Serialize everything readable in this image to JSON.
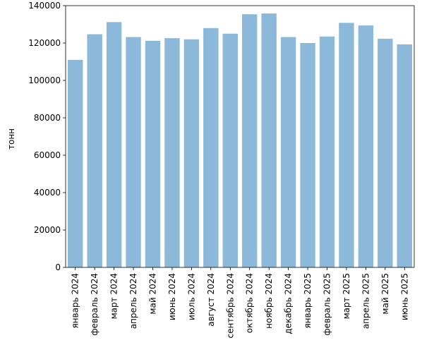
{
  "chart_data": {
    "type": "bar",
    "title": "",
    "xlabel": "",
    "ylabel": "тонн",
    "ylim": [
      0,
      140000
    ],
    "yticks": [
      0,
      20000,
      40000,
      60000,
      80000,
      100000,
      120000,
      140000
    ],
    "grid": false,
    "bar_color": "#8cb9d9",
    "categories": [
      "январь 2024",
      "февраль 2024",
      "март 2024",
      "апрель 2024",
      "май 2024",
      "июнь 2024",
      "июль 2024",
      "август 2024",
      "сентябрь 2024",
      "октябрь 2024",
      "ноябрь 2024",
      "декабрь 2024",
      "январь 2025",
      "февраль 2025",
      "март 2025",
      "апрель 2025",
      "май 2025",
      "июнь 2025"
    ],
    "values": [
      111000,
      124700,
      131200,
      123200,
      121200,
      122600,
      122000,
      128000,
      125000,
      135400,
      135800,
      123200,
      120000,
      123500,
      130800,
      129400,
      122300,
      119300
    ]
  }
}
